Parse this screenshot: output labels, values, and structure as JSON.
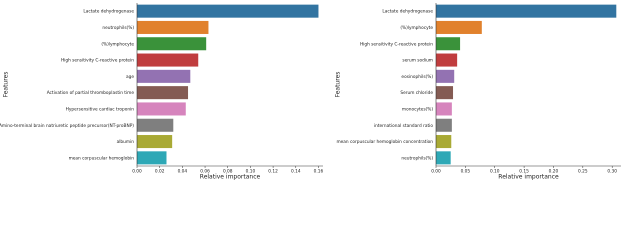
{
  "chart_data": [
    {
      "type": "bar",
      "orientation": "horizontal",
      "xlabel": "Relative importance",
      "ylabel": "Features",
      "categories": [
        "Lactate dehydrogenase",
        "neutrophils(%)",
        "(%)lymphocyte",
        "High sensitivity C-reactive protein",
        "age",
        "Activation of partial thromboplastin time",
        "Hypersensitive cardiac troponin",
        "Amino-terminal brain natriuretic peptide precursor(NT-proBNP)",
        "albumin",
        "mean corpuscular hemoglobin"
      ],
      "values": [
        0.16,
        0.063,
        0.061,
        0.054,
        0.047,
        0.045,
        0.043,
        0.032,
        0.031,
        0.026
      ],
      "colors": [
        "#3274a1",
        "#e1812c",
        "#3a923a",
        "#c03d3e",
        "#9372b2",
        "#845b53",
        "#d684bd",
        "#7f7f7f",
        "#a9aa35",
        "#2ea8b6"
      ],
      "xlim": [
        0,
        0.164
      ],
      "xticks": [
        {
          "value": 0,
          "label": "0.00"
        },
        {
          "value": 0.02,
          "label": "0.02"
        },
        {
          "value": 0.04,
          "label": "0.04"
        },
        {
          "value": 0.06,
          "label": "0.06"
        },
        {
          "value": 0.08,
          "label": "0.08"
        },
        {
          "value": 0.1,
          "label": "0.10"
        },
        {
          "value": 0.12,
          "label": "0.12"
        },
        {
          "value": 0.14,
          "label": "0.14"
        },
        {
          "value": 0.16,
          "label": "0.16"
        }
      ]
    },
    {
      "type": "bar",
      "orientation": "horizontal",
      "xlabel": "Relative importance",
      "ylabel": "Features",
      "categories": [
        "Lactate dehydrogenase",
        "(%)lymphocyte",
        "High sensitivity C-reactive protein",
        "serum sodium",
        "eosinophils(%)",
        "Serum chloride",
        "monocytes(%)",
        "international standard ratio",
        "mean corpuscular hemoglobin concentration",
        "neutrophils(%)"
      ],
      "values": [
        0.307,
        0.078,
        0.041,
        0.036,
        0.031,
        0.029,
        0.027,
        0.027,
        0.026,
        0.025
      ],
      "colors": [
        "#3274a1",
        "#e1812c",
        "#3a923a",
        "#c03d3e",
        "#9372b2",
        "#845b53",
        "#d684bd",
        "#7f7f7f",
        "#a9aa35",
        "#2ea8b6"
      ],
      "xlim": [
        0,
        0.315
      ],
      "xticks": [
        {
          "value": 0,
          "label": "0.00"
        },
        {
          "value": 0.05,
          "label": "0.05"
        },
        {
          "value": 0.1,
          "label": "0.10"
        },
        {
          "value": 0.15,
          "label": "0.15"
        },
        {
          "value": 0.2,
          "label": "0.20"
        },
        {
          "value": 0.25,
          "label": "0.25"
        },
        {
          "value": 0.3,
          "label": "0.30"
        }
      ]
    }
  ]
}
